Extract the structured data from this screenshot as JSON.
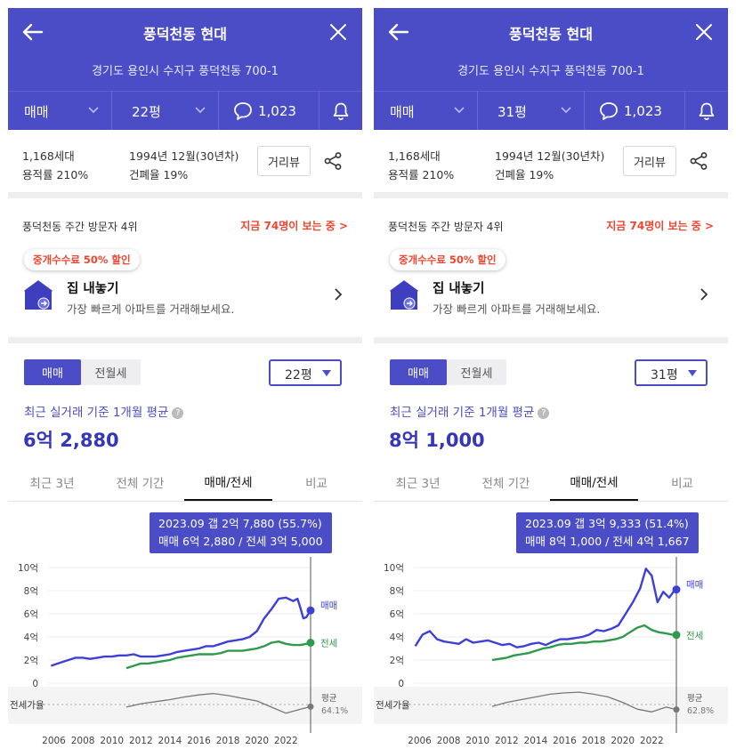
{
  "panels": [
    {
      "header": {
        "title": "풍덕천동 현대",
        "address": "경기도 용인시 수지구 풍덕천동 700-1",
        "trade_type": "매매",
        "size": "22평",
        "comment_count": "1,023"
      },
      "info": {
        "households": "1,168세대",
        "floor_area_ratio": "용적률 210%",
        "built": "1994년 12월(30년차)",
        "coverage_ratio": "건폐율 19%",
        "street_view_label": "거리뷰"
      },
      "visitors": {
        "rank": "풍덕천동 주간 방문자 4위",
        "viewing": "지금 74명이 보는 중 >"
      },
      "promo": {
        "badge": "중개수수료 50% 할인",
        "title": "집 내놓기",
        "subtitle": "가장 빠르게 아파트를 거래해보세요."
      },
      "price": {
        "toggle_sale": "매매",
        "toggle_rent": "전월세",
        "size_select": "22평",
        "basis": "최근 실거래 기준 1개월 평균",
        "amount": "6억 2,880"
      },
      "chart_tabs": [
        "최근 3년",
        "전체 기간",
        "매매/전세",
        "비교"
      ],
      "chart_data": {
        "type": "line",
        "tooltip_line1": "2023.09  갭 2억 7,880 (55.7%)",
        "tooltip_line2": "매매 6억 2,880 / 전세 3억 5,000",
        "y_ticks": [
          "10억",
          "8억",
          "6억",
          "4억",
          "2억",
          "0"
        ],
        "x_ticks": [
          "2006",
          "2008",
          "2010",
          "2012",
          "2014",
          "2016",
          "2018",
          "2020",
          "2022"
        ],
        "ylim": [
          0,
          10
        ],
        "ratio_label": "전세가율",
        "avg_label": "평균",
        "avg_value": "64.1%",
        "series": [
          {
            "name": "매매",
            "color": "#3d3fd8",
            "x": [
              2005.8,
              2006.5,
              2007.0,
              2007.5,
              2008.0,
              2008.5,
              2009.0,
              2009.5,
              2010.0,
              2010.5,
              2011.0,
              2011.5,
              2012.0,
              2012.5,
              2013.0,
              2013.5,
              2014.0,
              2014.5,
              2015.0,
              2015.5,
              2016.0,
              2016.5,
              2017.0,
              2017.5,
              2018.0,
              2018.5,
              2019.0,
              2019.5,
              2020.0,
              2020.5,
              2021.0,
              2021.5,
              2022.0,
              2022.5,
              2022.8,
              2023.0,
              2023.2,
              2023.4,
              2023.7
            ],
            "values": [
              1.5,
              1.8,
              2.0,
              2.2,
              2.2,
              2.1,
              2.2,
              2.3,
              2.3,
              2.4,
              2.4,
              2.5,
              2.3,
              2.3,
              2.3,
              2.4,
              2.5,
              2.7,
              2.8,
              2.9,
              3.0,
              3.2,
              3.2,
              3.4,
              3.6,
              3.7,
              3.8,
              4.0,
              4.5,
              5.6,
              6.4,
              7.3,
              7.4,
              7.1,
              7.3,
              6.5,
              5.6,
              5.7,
              6.29
            ]
          },
          {
            "name": "전세",
            "color": "#2e9a4c",
            "x": [
              2011.0,
              2011.5,
              2012.0,
              2012.5,
              2013.0,
              2013.5,
              2014.0,
              2014.5,
              2015.0,
              2015.5,
              2016.0,
              2016.5,
              2017.0,
              2017.5,
              2018.0,
              2018.5,
              2019.0,
              2019.5,
              2020.0,
              2020.5,
              2021.0,
              2021.5,
              2022.0,
              2022.5,
              2023.0,
              2023.4,
              2023.7
            ],
            "values": [
              1.3,
              1.5,
              1.7,
              1.7,
              1.8,
              1.9,
              2.0,
              2.2,
              2.3,
              2.4,
              2.5,
              2.5,
              2.5,
              2.6,
              2.8,
              2.8,
              2.8,
              2.9,
              3.0,
              3.2,
              3.5,
              3.6,
              3.4,
              3.3,
              3.3,
              3.4,
              3.5
            ]
          },
          {
            "name": "전세가율",
            "color": "#777777",
            "x": [
              2011.0,
              2012.0,
              2013.0,
              2014.0,
              2015.0,
              2016.0,
              2017.0,
              2018.0,
              2019.0,
              2020.0,
              2021.0,
              2022.0,
              2023.0,
              2023.7
            ],
            "values": [
              55,
              60,
              63,
              66,
              70,
              73,
              75,
              72,
              68,
              64,
              55,
              46,
              52,
              55.7
            ]
          }
        ]
      }
    },
    {
      "header": {
        "title": "풍덕천동 현대",
        "address": "경기도 용인시 수지구 풍덕천동 700-1",
        "trade_type": "매매",
        "size": "31평",
        "comment_count": "1,023"
      },
      "info": {
        "households": "1,168세대",
        "floor_area_ratio": "용적률 210%",
        "built": "1994년 12월(30년차)",
        "coverage_ratio": "건폐율 19%",
        "street_view_label": "거리뷰"
      },
      "visitors": {
        "rank": "풍덕천동 주간 방문자 4위",
        "viewing": "지금 74명이 보는 중 >"
      },
      "promo": {
        "badge": "중개수수료 50% 할인",
        "title": "집 내놓기",
        "subtitle": "가장 빠르게 아파트를 거래해보세요."
      },
      "price": {
        "toggle_sale": "매매",
        "toggle_rent": "전월세",
        "size_select": "31평",
        "basis": "최근 실거래 기준 1개월 평균",
        "amount": "8억 1,000"
      },
      "chart_tabs": [
        "최근 3년",
        "전체 기간",
        "매매/전세",
        "비교"
      ],
      "chart_data": {
        "type": "line",
        "tooltip_line1": "2023.09  갭 3억 9,333 (51.4%)",
        "tooltip_line2": "매매 8억 1,000 / 전세 4억 1,667",
        "y_ticks": [
          "10억",
          "8억",
          "6억",
          "4억",
          "2억",
          "0"
        ],
        "x_ticks": [
          "2006",
          "2008",
          "2010",
          "2012",
          "2014",
          "2016",
          "2018",
          "2020",
          "2022"
        ],
        "ylim": [
          0,
          10
        ],
        "ratio_label": "전세가율",
        "avg_label": "평균",
        "avg_value": "62.8%",
        "series": [
          {
            "name": "매매",
            "color": "#3d3fd8",
            "x": [
              2005.7,
              2006.2,
              2006.7,
              2007.2,
              2007.7,
              2008.2,
              2008.7,
              2009.2,
              2009.7,
              2010.2,
              2010.7,
              2011.2,
              2011.7,
              2012.2,
              2012.7,
              2013.2,
              2013.7,
              2014.2,
              2014.7,
              2015.2,
              2015.7,
              2016.2,
              2016.7,
              2017.2,
              2017.7,
              2018.2,
              2018.7,
              2019.2,
              2019.7,
              2020.2,
              2020.7,
              2021.2,
              2021.6,
              2022.0,
              2022.4,
              2022.8,
              2023.2,
              2023.5,
              2023.7
            ],
            "values": [
              3.2,
              4.2,
              4.5,
              3.8,
              3.6,
              3.5,
              3.4,
              3.8,
              3.5,
              3.6,
              3.7,
              3.5,
              3.3,
              3.4,
              3.1,
              3.2,
              3.4,
              3.5,
              3.3,
              3.6,
              3.8,
              3.8,
              3.9,
              4.0,
              4.2,
              4.6,
              4.5,
              4.7,
              5.0,
              6.0,
              7.0,
              8.2,
              9.9,
              9.3,
              7.0,
              7.9,
              7.4,
              7.9,
              8.1
            ]
          },
          {
            "name": "전세",
            "color": "#2e9a4c",
            "x": [
              2011.0,
              2011.5,
              2012.0,
              2012.5,
              2013.0,
              2013.5,
              2014.0,
              2014.5,
              2015.0,
              2015.5,
              2016.0,
              2016.5,
              2017.0,
              2017.5,
              2018.0,
              2018.5,
              2019.0,
              2019.5,
              2020.0,
              2020.5,
              2021.0,
              2021.5,
              2022.0,
              2022.5,
              2023.0,
              2023.4,
              2023.7
            ],
            "values": [
              2.0,
              2.1,
              2.2,
              2.4,
              2.5,
              2.6,
              2.8,
              3.0,
              3.1,
              3.3,
              3.4,
              3.4,
              3.5,
              3.5,
              3.6,
              3.6,
              3.7,
              3.8,
              4.0,
              4.4,
              4.8,
              5.0,
              4.6,
              4.4,
              4.3,
              4.2,
              4.17
            ]
          },
          {
            "name": "전세가율",
            "color": "#777777",
            "x": [
              2011.0,
              2012.0,
              2013.0,
              2014.0,
              2015.0,
              2016.0,
              2017.0,
              2018.0,
              2019.0,
              2020.0,
              2021.0,
              2022.0,
              2023.0,
              2023.7
            ],
            "values": [
              56,
              62,
              66,
              70,
              74,
              76,
              77,
              74,
              70,
              62,
              52,
              48,
              55,
              51.4
            ]
          }
        ]
      }
    }
  ]
}
